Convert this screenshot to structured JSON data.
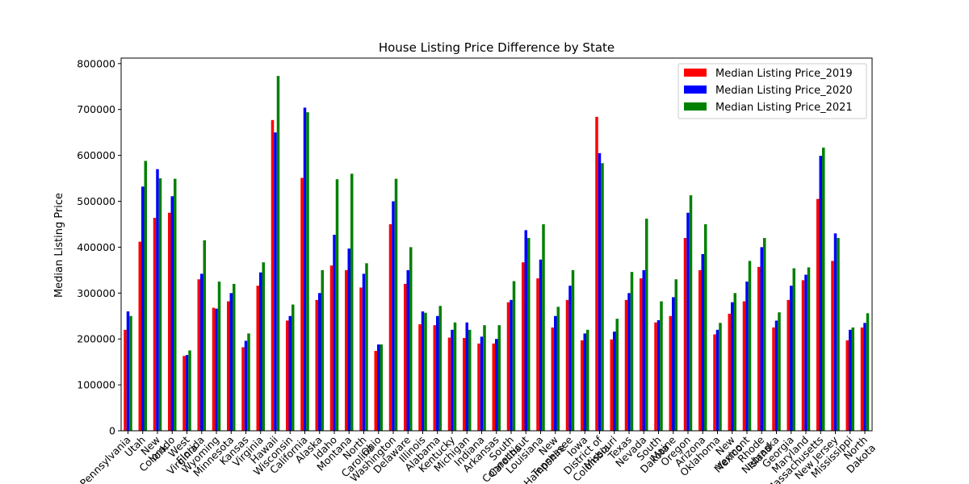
{
  "chart_data": {
    "type": "bar",
    "title": "House Listing Price Difference by State",
    "xlabel": "",
    "ylabel": "Median Listing Price",
    "ylim": [
      0,
      812000
    ],
    "yticks": [
      0,
      100000,
      200000,
      300000,
      400000,
      500000,
      600000,
      700000,
      800000
    ],
    "ytick_labels": [
      "0",
      "100000",
      "200000",
      "300000",
      "400000",
      "500000",
      "600000",
      "700000",
      "800000"
    ],
    "grid": false,
    "legend_position": "top-right",
    "categories": [
      "Pennsylvania",
      "Utah",
      "New York",
      "Colorado",
      "West Virginia",
      "Florida",
      "Wyoming",
      "Minnesota",
      "Kansas",
      "Virginia",
      "Hawaii",
      "Wisconsin",
      "California",
      "Alaska",
      "Idaho",
      "Montana",
      "North Carolina",
      "Ohio",
      "Washington",
      "Delaware",
      "Illinois",
      "Alabama",
      "Kentucky",
      "Michigan",
      "Indiana",
      "Arkansas",
      "South Carolina",
      "Connecticut",
      "Louisiana",
      "New Hampshire",
      "Tennessee",
      "Iowa",
      "District of Columbia",
      "Missouri",
      "Texas",
      "Nevada",
      "South Dakota",
      "Maine",
      "Oregon",
      "Arizona",
      "Oklahoma",
      "New Mexico",
      "Vermont",
      "Rhode Island",
      "Nebraska",
      "Georgia",
      "Maryland",
      "Massachusetts",
      "New Jersey",
      "Mississippi",
      "North Dakota"
    ],
    "category_labels": [
      [
        "Pennsylvania"
      ],
      [
        "Utah"
      ],
      [
        "New",
        "York"
      ],
      [
        "Colorado"
      ],
      [
        "West",
        "Virginia"
      ],
      [
        "Florida"
      ],
      [
        "Wyoming"
      ],
      [
        "Minnesota"
      ],
      [
        "Kansas"
      ],
      [
        "Virginia"
      ],
      [
        "Hawaii"
      ],
      [
        "Wisconsin"
      ],
      [
        "California"
      ],
      [
        "Alaska"
      ],
      [
        "Idaho"
      ],
      [
        "Montana"
      ],
      [
        "North",
        "Carolina"
      ],
      [
        "Ohio"
      ],
      [
        "Washington"
      ],
      [
        "Delaware"
      ],
      [
        "Illinois"
      ],
      [
        "Alabama"
      ],
      [
        "Kentucky"
      ],
      [
        "Michigan"
      ],
      [
        "Indiana"
      ],
      [
        "Arkansas"
      ],
      [
        "South",
        "Carolina"
      ],
      [
        "Connecticut"
      ],
      [
        "Louisiana"
      ],
      [
        "New",
        "Hampshire"
      ],
      [
        "Tennessee"
      ],
      [
        "Iowa"
      ],
      [
        "District of",
        "Columbia"
      ],
      [
        "Missouri"
      ],
      [
        "Texas"
      ],
      [
        "Nevada"
      ],
      [
        "South",
        "Dakota"
      ],
      [
        "Maine"
      ],
      [
        "Oregon"
      ],
      [
        "Arizona"
      ],
      [
        "Oklahoma"
      ],
      [
        "New",
        "Mexico"
      ],
      [
        "Vermont"
      ],
      [
        "Rhode",
        "Island"
      ],
      [
        "Nebraska"
      ],
      [
        "Georgia"
      ],
      [
        "Maryland"
      ],
      [
        "Massachusetts"
      ],
      [
        "New Jersey"
      ],
      [
        "Mississippi"
      ],
      [
        "North",
        "Dakota"
      ]
    ],
    "series": [
      {
        "name": "Median Listing Price_2019",
        "color": "#ff0000",
        "values": [
          220000,
          412000,
          464000,
          475000,
          163000,
          330000,
          268000,
          282000,
          182000,
          316000,
          677000,
          240000,
          551000,
          285000,
          360000,
          350000,
          312000,
          174000,
          450000,
          320000,
          232000,
          230000,
          203000,
          202000,
          190000,
          190000,
          280000,
          367000,
          332000,
          225000,
          285000,
          197000,
          684000,
          199000,
          285000,
          332000,
          236000,
          250000,
          420000,
          350000,
          210000,
          255000,
          282000,
          357000,
          225000,
          285000,
          328000,
          505000,
          370000,
          197000,
          225000
        ]
      },
      {
        "name": "Median Listing Price_2020",
        "color": "#0000ff",
        "values": [
          260000,
          532000,
          570000,
          511000,
          165000,
          342000,
          266000,
          300000,
          196000,
          345000,
          650000,
          250000,
          704000,
          300000,
          427000,
          397000,
          342000,
          188000,
          500000,
          350000,
          260000,
          250000,
          220000,
          236000,
          205000,
          200000,
          285000,
          437000,
          373000,
          250000,
          316000,
          212000,
          605000,
          216000,
          300000,
          350000,
          241000,
          291000,
          475000,
          385000,
          220000,
          280000,
          325000,
          400000,
          240000,
          316000,
          340000,
          599000,
          430000,
          220000,
          235000
        ]
      },
      {
        "name": "Median Listing Price_2021",
        "color": "#008000",
        "values": [
          250000,
          588000,
          550000,
          549000,
          175000,
          415000,
          325000,
          320000,
          212000,
          367000,
          773000,
          275000,
          694000,
          350000,
          548000,
          560000,
          365000,
          188000,
          549000,
          400000,
          257000,
          272000,
          236000,
          220000,
          230000,
          230000,
          326000,
          420000,
          450000,
          270000,
          350000,
          220000,
          583000,
          244000,
          346000,
          462000,
          282000,
          330000,
          513000,
          450000,
          235000,
          300000,
          370000,
          420000,
          258000,
          354000,
          356000,
          617000,
          420000,
          225000,
          256000
        ]
      }
    ]
  }
}
